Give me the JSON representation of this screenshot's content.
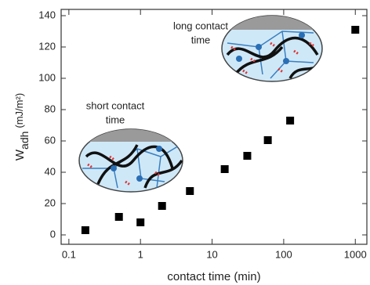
{
  "chart_data": {
    "type": "scatter",
    "x_label": "contact time (min)",
    "y_label": "W",
    "y_label_sub": "adh",
    "y_label_unit": "(mJ/m²)",
    "annotations": [
      {
        "lines": [
          "short contact",
          "time"
        ]
      },
      {
        "lines": [
          "long contact",
          "time"
        ]
      }
    ],
    "x": [
      0.17,
      0.5,
      1,
      2,
      4.9,
      15,
      31,
      60,
      123,
      1000
    ],
    "values": [
      3,
      11.5,
      8,
      18.5,
      28,
      42,
      50.5,
      60.5,
      73,
      131
    ],
    "color": "#000000",
    "xscale": "log",
    "xlim": [
      0.078,
      1450
    ],
    "xticks": [
      0.1,
      1,
      10,
      100,
      1000
    ],
    "ylim": [
      -6,
      144
    ],
    "yticks": [
      0,
      20,
      40,
      60,
      80,
      100,
      120,
      140
    ]
  }
}
